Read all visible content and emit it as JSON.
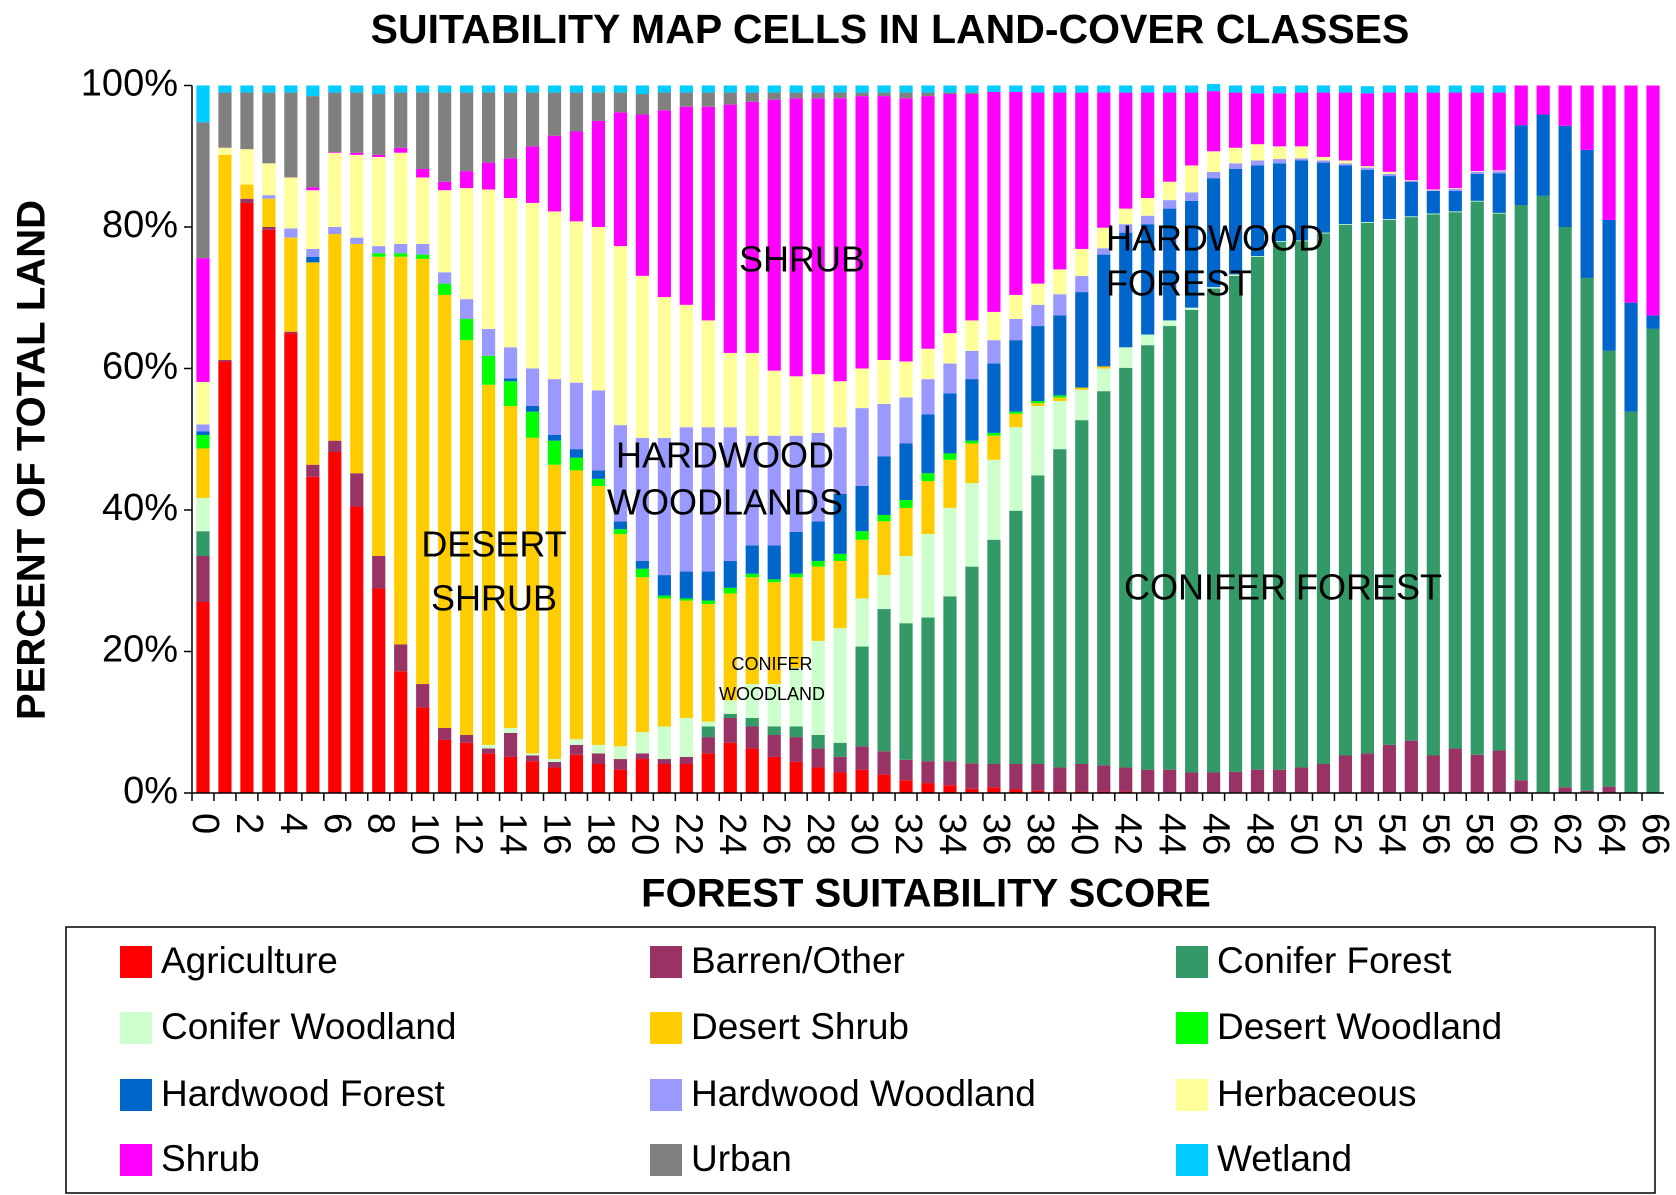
{
  "chart_data": {
    "type": "stacked_bar",
    "title": "SUITABILITY MAP CELLS IN LAND-COVER CLASSES",
    "x_label": "FOREST SUITABILITY SCORE",
    "y_label": "PERCENT OF TOTAL LAND",
    "categories": [
      0,
      null,
      2,
      null,
      4,
      null,
      6,
      null,
      8,
      null,
      10,
      null,
      12,
      null,
      14,
      null,
      16,
      null,
      18,
      null,
      20,
      null,
      22,
      null,
      24,
      null,
      26,
      null,
      28,
      null,
      30,
      null,
      32,
      null,
      34,
      null,
      36,
      null,
      38,
      null,
      40,
      null,
      42,
      null,
      44,
      null,
      46,
      null,
      48,
      null,
      50,
      null,
      52,
      null,
      54,
      null,
      56,
      null,
      58,
      null,
      60,
      null,
      62,
      null,
      64,
      null,
      66
    ],
    "ylim": [
      0,
      100
    ],
    "yticks": [
      {
        "value": 0,
        "label": "0%"
      },
      {
        "value": 20,
        "label": "20%"
      },
      {
        "value": 40,
        "label": "40%"
      },
      {
        "value": 60,
        "label": "60%"
      },
      {
        "value": 80,
        "label": "80%"
      },
      {
        "value": 100,
        "label": "100%"
      }
    ],
    "grid": false,
    "legend_position": "bottom",
    "annotations": [
      [
        "SHRUB"
      ],
      [
        "HARDWOOD",
        "WOODLANDS"
      ],
      [
        "DESERT",
        "SHRUB"
      ],
      [
        "CONIFER",
        "WOODLAND"
      ],
      [
        "HARDWOOD",
        "FOREST"
      ],
      [
        "CONIFER FOREST"
      ]
    ],
    "series": [
      {
        "name": "Agriculture",
        "color": "#ff0000",
        "values": [
          27,
          61,
          83.4,
          79.6,
          65,
          44.7,
          48.2,
          40.5,
          28.9,
          17.2,
          12.1,
          7.5,
          7.1,
          5.6,
          5.1,
          4.5,
          3.6,
          5.4,
          4.1,
          3.3,
          4.8,
          4.1,
          4.1,
          5.6,
          7.1,
          6.3,
          5.1,
          4.4,
          3.6,
          2.9,
          3.3,
          2.6,
          1.8,
          1.4,
          1.1,
          0.6,
          0.8,
          0.5,
          0.3,
          0.2,
          0.2,
          0.2,
          0.2,
          0.1,
          0.1,
          0.1,
          0.1,
          0.1,
          0.1,
          0.1,
          0.1,
          0.1,
          0.1,
          0.1,
          0.1,
          0.1,
          0.1,
          0.1,
          0.1,
          0.1,
          0,
          0,
          0,
          0,
          0,
          0,
          0
        ]
      },
      {
        "name": "Barren/Other",
        "color": "#993366",
        "values": [
          6.5,
          0.2,
          0.6,
          0.4,
          0.2,
          1.7,
          1.6,
          4.7,
          4.6,
          3.8,
          3.3,
          1.7,
          1.1,
          0.7,
          3.4,
          0.8,
          0.8,
          1.4,
          1.5,
          1.5,
          0.8,
          0.7,
          1,
          2.3,
          3.5,
          3.1,
          3.1,
          3.5,
          2.7,
          2.2,
          3.3,
          3.3,
          2.9,
          3.1,
          3.4,
          3.6,
          3.3,
          3.6,
          3.8,
          3.4,
          3.9,
          3.7,
          3.4,
          3.2,
          3.2,
          2.8,
          2.8,
          2.9,
          3.2,
          3.2,
          3.5,
          4,
          5.2,
          5.5,
          6.7,
          7.3,
          5.2,
          6.2,
          5.3,
          5.9,
          1.8,
          0.1,
          0.8,
          0.3,
          0.9,
          0,
          0
        ]
      },
      {
        "name": "Conifer Forest",
        "color": "#339966",
        "values": [
          3.5,
          0,
          0,
          0,
          0,
          0,
          0,
          0,
          0,
          0,
          0,
          0,
          0,
          0,
          0,
          0,
          0,
          0,
          0,
          0,
          0,
          0,
          0,
          1.5,
          0.6,
          1.2,
          1.2,
          1.5,
          1.9,
          2,
          14.1,
          20.1,
          19.3,
          20.3,
          23.3,
          27.8,
          31.7,
          35.8,
          40.8,
          45,
          48.6,
          52.9,
          56.5,
          60,
          62.7,
          65.4,
          68.4,
          70.1,
          72.5,
          74.6,
          74.4,
          75,
          75,
          75,
          74.2,
          74,
          76.5,
          75.8,
          78.2,
          75.9,
          81.3,
          84.3,
          79.2,
          72.5,
          61.6,
          53.9,
          65.6
        ]
      },
      {
        "name": "Conifer Woodland",
        "color": "#ccffcc",
        "values": [
          4.7,
          0,
          0,
          0,
          0,
          0,
          0,
          0,
          0,
          0,
          0,
          0,
          0,
          0.5,
          0.7,
          0.3,
          0.4,
          0.8,
          1.2,
          1.8,
          3,
          4.6,
          5.5,
          0.7,
          1.9,
          4.8,
          6,
          8.3,
          13.3,
          16.2,
          6.8,
          4.8,
          9.5,
          11.8,
          12.5,
          11.8,
          11.3,
          11.8,
          9.8,
          6.8,
          4.3,
          3.2,
          2.9,
          1.5,
          0.8,
          0.3,
          0.2,
          0.2,
          0.1,
          0.1,
          0.1,
          0.1,
          0.1,
          0.1,
          0.1,
          0.1,
          0.1,
          0.1,
          0.1,
          0.1,
          0,
          0,
          0,
          0,
          0,
          0,
          0
        ]
      },
      {
        "name": "Desert Shrub",
        "color": "#ffcc00",
        "values": [
          7,
          29,
          2,
          4,
          13.3,
          28.6,
          29.2,
          32.4,
          42.3,
          54.8,
          60.1,
          61.2,
          55.8,
          50.9,
          45.5,
          44.6,
          41.6,
          38,
          36.6,
          30,
          21.9,
          18.1,
          16.6,
          16.6,
          15.1,
          15.1,
          14.4,
          12.8,
          10.5,
          9.5,
          8.3,
          7.6,
          6.8,
          7.5,
          6.8,
          5.6,
          3.4,
          1.9,
          0.4,
          0.5,
          0.3,
          0.3,
          0,
          0,
          0,
          0,
          0,
          0,
          0,
          0,
          0,
          0,
          0,
          0,
          0,
          0,
          0,
          0,
          0,
          0,
          0,
          0,
          0,
          0,
          0,
          0,
          0
        ]
      },
      {
        "name": "Desert Woodland",
        "color": "#00ff00",
        "values": [
          1.9,
          0,
          0,
          0,
          0,
          0,
          0,
          0,
          0.5,
          0.5,
          0.6,
          1.6,
          3,
          4.1,
          3.5,
          3.7,
          3.4,
          1.8,
          1,
          0.7,
          1.2,
          0.4,
          0.3,
          0.5,
          0.8,
          0.5,
          0.4,
          0.5,
          0.8,
          1,
          1.2,
          0.9,
          1.1,
          1.1,
          0.9,
          0.4,
          0.4,
          0.3,
          0.3,
          0.3,
          0,
          0,
          0,
          0,
          0,
          0,
          0,
          0,
          0,
          0,
          0,
          0,
          0,
          0,
          0,
          0,
          0,
          0,
          0,
          0,
          0,
          0,
          0,
          0,
          0,
          0,
          0
        ]
      },
      {
        "name": "Hardwood Forest",
        "color": "#0066cc",
        "values": [
          0.5,
          0,
          0,
          0,
          0,
          0.8,
          0,
          0,
          0,
          0,
          0,
          0,
          0,
          0,
          0.4,
          0.8,
          0.8,
          1.2,
          1.2,
          1.1,
          1.1,
          2.9,
          3.8,
          4.1,
          3.8,
          4,
          4.8,
          5.9,
          5.6,
          8.5,
          6.4,
          8.3,
          8,
          8.3,
          8.5,
          8.7,
          9.8,
          10.1,
          10.6,
          11.3,
          13.5,
          15.8,
          16.2,
          15.6,
          15.8,
          15.1,
          15.4,
          14.9,
          12.8,
          11,
          11.3,
          9.9,
          8.3,
          7.4,
          6.1,
          4.9,
          3.2,
          2.9,
          3.8,
          5.6,
          11.3,
          11.5,
          14.3,
          18.1,
          18.5,
          15.4,
          1.9
        ]
      },
      {
        "name": "Hardwood Woodland",
        "color": "#9999ff",
        "values": [
          1,
          0,
          0,
          0.5,
          1.3,
          1.1,
          1,
          0.9,
          1,
          1.3,
          1.5,
          1.6,
          2.8,
          3.8,
          4.4,
          5.3,
          7.9,
          9.4,
          11.3,
          13.6,
          17.4,
          19.4,
          20.4,
          20.4,
          18.9,
          15.5,
          15.5,
          13.6,
          12.5,
          9.4,
          11,
          7.4,
          6.5,
          5,
          4.2,
          4,
          3.3,
          3,
          3,
          3,
          2.3,
          0.9,
          1.2,
          1.2,
          1.2,
          1.2,
          0.9,
          0.8,
          0.7,
          0.6,
          0.3,
          0.3,
          0.3,
          0.3,
          0.3,
          0.1,
          0.1,
          0.3,
          0.3,
          0.3,
          0,
          0,
          0,
          0,
          0,
          0,
          0
        ]
      },
      {
        "name": "Herbaceous",
        "color": "#ffff99",
        "values": [
          6,
          1,
          5,
          4.5,
          7.2,
          8.3,
          10.5,
          11.7,
          12.6,
          12.9,
          9.4,
          11.6,
          15.7,
          19.7,
          21.1,
          23.4,
          23.7,
          22.8,
          23.1,
          25.3,
          22.9,
          19.9,
          17.3,
          15.1,
          10.5,
          11.7,
          9.2,
          8.4,
          8.3,
          6.5,
          5.6,
          6.2,
          5.1,
          4.3,
          4.3,
          4.3,
          4,
          3.4,
          3,
          3.5,
          3.8,
          2.9,
          2.2,
          2.5,
          2.6,
          3.8,
          2.9,
          2.2,
          2.3,
          1.8,
          1.7,
          0.5,
          0.4,
          0.2,
          0.3,
          0.1,
          0.1,
          0.1,
          0.1,
          0.1,
          0,
          0,
          0,
          0,
          0,
          0,
          0
        ]
      },
      {
        "name": "Shrub",
        "color": "#ff00ff",
        "values": [
          17.5,
          0,
          0,
          0,
          0,
          0.4,
          0.1,
          0.3,
          0.3,
          0.7,
          1.2,
          1.2,
          2.4,
          3.8,
          5.6,
          8,
          10.7,
          12.7,
          15,
          18.9,
          22.8,
          26.4,
          28,
          30.2,
          35.1,
          35.5,
          38.3,
          39.3,
          39,
          40,
          38.5,
          37.3,
          37.2,
          35.7,
          33.8,
          32,
          31.1,
          28.7,
          27,
          25,
          22.1,
          19.1,
          16.4,
          14.9,
          12.6,
          10.3,
          8.5,
          7.8,
          7.2,
          7.5,
          7.6,
          9.1,
          9.6,
          10.3,
          11.2,
          12.4,
          13.7,
          13.5,
          11.1,
          11,
          5.6,
          4.1,
          5.7,
          9.1,
          19,
          30.7,
          32.5
        ]
      },
      {
        "name": "Urban",
        "color": "#808080",
        "values": [
          19.2,
          7.8,
          8,
          10,
          12,
          12.9,
          8.4,
          8.5,
          8.6,
          7.8,
          10.8,
          12.6,
          11.1,
          9.9,
          9.3,
          7.6,
          6.1,
          5.5,
          4,
          2.8,
          2.9,
          2.5,
          2,
          2,
          1.7,
          1.3,
          1,
          0.8,
          0.8,
          0.8,
          0.5,
          0.5,
          0.8,
          0.5,
          0.2,
          0.2,
          0,
          0,
          0,
          0,
          0,
          0,
          0,
          0,
          0,
          0,
          0,
          0,
          0,
          0,
          0,
          0,
          0,
          0,
          0,
          0,
          0,
          0,
          0,
          0,
          0,
          0,
          0,
          0,
          0,
          0,
          0
        ]
      },
      {
        "name": "Wetland",
        "color": "#00ccff",
        "values": [
          5.2,
          1,
          1,
          1,
          1,
          1.5,
          1,
          1,
          1.2,
          1,
          1,
          1,
          1,
          1,
          1,
          1,
          1,
          1,
          1,
          1,
          1.2,
          1,
          1,
          1,
          1,
          1,
          1,
          1,
          1,
          1,
          1,
          1,
          1,
          1,
          1,
          1,
          0.9,
          0.9,
          1,
          1,
          1,
          1,
          1,
          1,
          1,
          1,
          1,
          1,
          1.1,
          1,
          1,
          1,
          1,
          1,
          1,
          1,
          1,
          1,
          1,
          1,
          0,
          0,
          0,
          0,
          0,
          0,
          0
        ]
      }
    ]
  }
}
